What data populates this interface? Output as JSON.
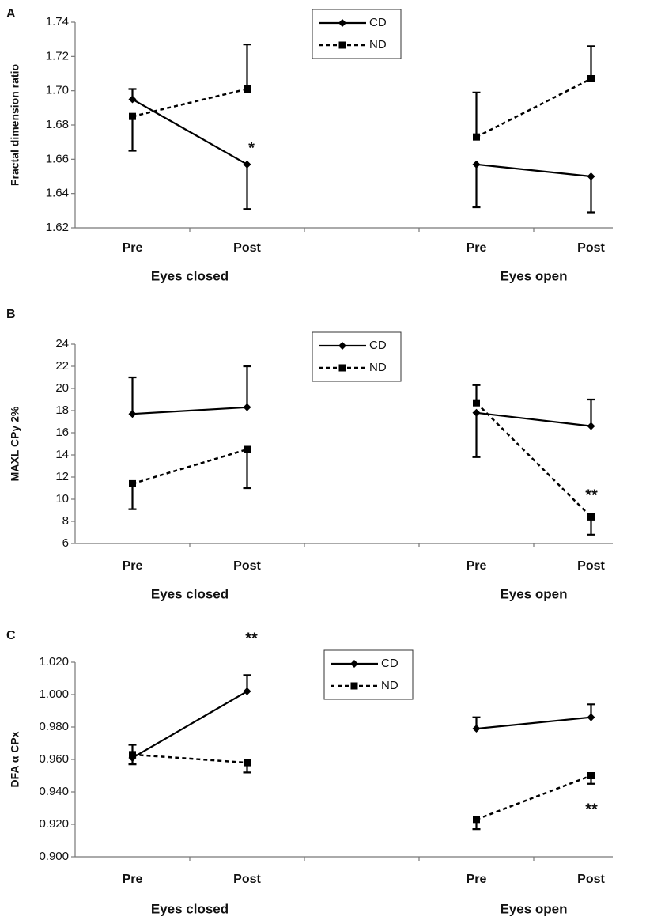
{
  "chart_data": [
    {
      "type": "line",
      "panel": "A",
      "y_label": "Fractal dimension ratio",
      "categories": [
        "Pre",
        "Post",
        null,
        "Pre",
        "Post"
      ],
      "x_group_labels": [
        "Eyes closed",
        "Eyes open"
      ],
      "ylim": [
        1.62,
        1.74
      ],
      "yticks": [
        1.62,
        1.64,
        1.66,
        1.68,
        {
          "value": 1.7,
          "label": "1.70"
        },
        1.72,
        1.74
      ],
      "legend": "top",
      "series": [
        {
          "name": "CD",
          "color": "#000000",
          "marker": "diamond",
          "dashed": false,
          "values": [
            1.695,
            1.657,
            null,
            1.657,
            1.65
          ],
          "errors": [
            0.006,
            0.026,
            null,
            0.025,
            0.021
          ],
          "error_side": [
            "up",
            "down",
            null,
            "down",
            "down"
          ]
        },
        {
          "name": "ND",
          "color": "#000000",
          "marker": "square",
          "dashed": true,
          "values": [
            1.685,
            1.701,
            null,
            1.673,
            1.707
          ],
          "errors": [
            0.02,
            0.026,
            null,
            0.026,
            0.019
          ],
          "error_side": [
            "down",
            "up",
            null,
            "up",
            "up"
          ]
        }
      ],
      "annotations": [
        "*"
      ]
    },
    {
      "type": "line",
      "panel": "B",
      "y_label": "MAXL CPy 2%",
      "categories": [
        "Pre",
        "Post",
        null,
        "Pre",
        "Post"
      ],
      "x_group_labels": [
        "Eyes closed",
        "Eyes open"
      ],
      "ylim": [
        6,
        24
      ],
      "yticks": [
        6,
        8,
        10,
        12,
        14,
        16,
        18,
        20,
        22,
        24
      ],
      "legend": "top",
      "series": [
        {
          "name": "CD",
          "color": "#000000",
          "marker": "diamond",
          "dashed": false,
          "values": [
            17.7,
            18.3,
            null,
            17.8,
            16.6
          ],
          "errors": [
            3.3,
            3.7,
            null,
            4.0,
            2.4
          ],
          "error_side": [
            "up",
            "up",
            null,
            "down",
            "up"
          ]
        },
        {
          "name": "ND",
          "color": "#000000",
          "marker": "square",
          "dashed": true,
          "values": [
            11.4,
            14.5,
            null,
            18.7,
            8.4
          ],
          "errors": [
            2.3,
            3.5,
            null,
            1.6,
            1.6
          ],
          "error_side": [
            "down",
            "down",
            null,
            "up",
            "down"
          ]
        }
      ],
      "annotations": [
        "**"
      ]
    },
    {
      "type": "line",
      "panel": "C",
      "y_label": "DFA α CPx",
      "categories": [
        "Pre",
        "Post",
        null,
        "Pre",
        "Post"
      ],
      "x_group_labels": [
        "Eyes closed",
        "Eyes open"
      ],
      "ylim": [
        0.9,
        1.02
      ],
      "yticks": [
        {
          "value": 0.9,
          "label": "0.900"
        },
        {
          "value": 0.92,
          "label": "0.920"
        },
        {
          "value": 0.94,
          "label": "0.940"
        },
        {
          "value": 0.96,
          "label": "0.960"
        },
        {
          "value": 0.98,
          "label": "0.980"
        },
        {
          "value": 1.0,
          "label": "1.000"
        },
        {
          "value": 1.02,
          "label": "1.020"
        }
      ],
      "legend": "top",
      "series": [
        {
          "name": "CD",
          "color": "#000000",
          "marker": "diamond",
          "dashed": false,
          "values": [
            0.961,
            1.002,
            null,
            0.979,
            0.986
          ],
          "errors": [
            0.004,
            0.01,
            null,
            0.007,
            0.008
          ],
          "error_side": [
            "down",
            "up",
            null,
            "up",
            "up"
          ]
        },
        {
          "name": "ND",
          "color": "#000000",
          "marker": "square",
          "dashed": true,
          "values": [
            0.963,
            0.958,
            null,
            0.923,
            0.95
          ],
          "errors": [
            0.006,
            0.006,
            null,
            0.006,
            0.005
          ],
          "error_side": [
            "up",
            "down",
            null,
            "down",
            "down"
          ]
        }
      ],
      "annotations": [
        "**",
        "**"
      ]
    }
  ]
}
